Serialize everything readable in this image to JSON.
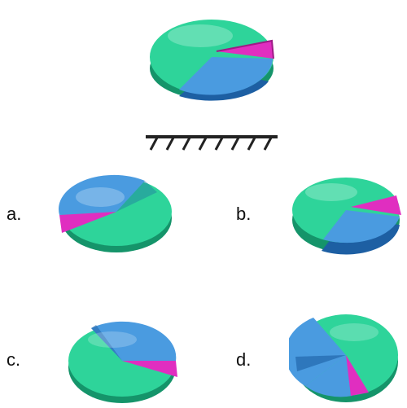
{
  "colors": {
    "green": "#2ed49a",
    "green_dark": "#15946a",
    "blue": "#4a9be0",
    "blue_dark": "#1d5fa3",
    "magenta": "#e02ec0",
    "magenta_dark": "#9e1a86",
    "mirror_line": "#222222"
  },
  "question": {
    "mirror_icon": "mirror-hatch-icon"
  },
  "options": [
    {
      "label": "a."
    },
    {
      "label": "b."
    },
    {
      "label": "c."
    },
    {
      "label": "d."
    }
  ]
}
